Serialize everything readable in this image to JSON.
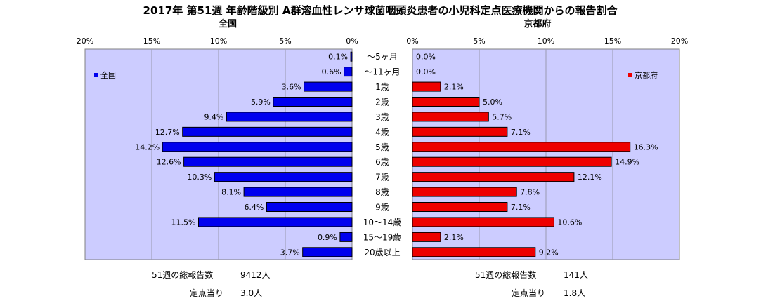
{
  "chart_data": {
    "type": "bar",
    "title": "2017年 第51週 年齢階級別 A群溶血性レンサ球菌咽頭炎患者の小児科定点医療機関からの報告割合",
    "categories": [
      "～5ヶ月",
      "～11ヶ月",
      "1歳",
      "2歳",
      "3歳",
      "4歳",
      "5歳",
      "6歳",
      "7歳",
      "8歳",
      "9歳",
      "10～14歳",
      "15～19歳",
      "20歳以上"
    ],
    "xlim": [
      0,
      20
    ],
    "ticks": [
      "20%",
      "15%",
      "10%",
      "5%",
      "0%"
    ],
    "ticks_right": [
      "0%",
      "5%",
      "10%",
      "15%",
      "20%"
    ],
    "series": [
      {
        "name": "全国",
        "panel_title": "全国",
        "color": "#0000ee",
        "values": [
          0.1,
          0.6,
          3.6,
          5.9,
          9.4,
          12.7,
          14.2,
          12.6,
          10.3,
          8.1,
          6.4,
          11.5,
          0.9,
          3.7
        ],
        "labels": [
          "0.1%",
          "0.6%",
          "3.6%",
          "5.9%",
          "9.4%",
          "12.7%",
          "14.2%",
          "12.6%",
          "10.3%",
          "8.1%",
          "6.4%",
          "11.5%",
          "0.9%",
          "3.7%"
        ]
      },
      {
        "name": "京都府",
        "panel_title": "京都府",
        "color": "#ee0000",
        "values": [
          0.0,
          0.0,
          2.1,
          5.0,
          5.7,
          7.1,
          16.3,
          14.9,
          12.1,
          7.8,
          7.1,
          10.6,
          2.1,
          9.2
        ],
        "labels": [
          "0.0%",
          "0.0%",
          "2.1%",
          "5.0%",
          "5.7%",
          "7.1%",
          "16.3%",
          "14.9%",
          "12.1%",
          "7.8%",
          "7.1%",
          "10.6%",
          "2.1%",
          "9.2%"
        ]
      }
    ],
    "grid": true,
    "legend": "inside-top"
  },
  "stats": {
    "national": {
      "total_label": "51週の総報告数",
      "total_value": "9412人",
      "per_label": "定点当り",
      "per_value": "3.0人"
    },
    "kyoto": {
      "total_label": "51週の総報告数",
      "total_value": "141人",
      "per_label": "定点当り",
      "per_value": "1.8人"
    }
  }
}
